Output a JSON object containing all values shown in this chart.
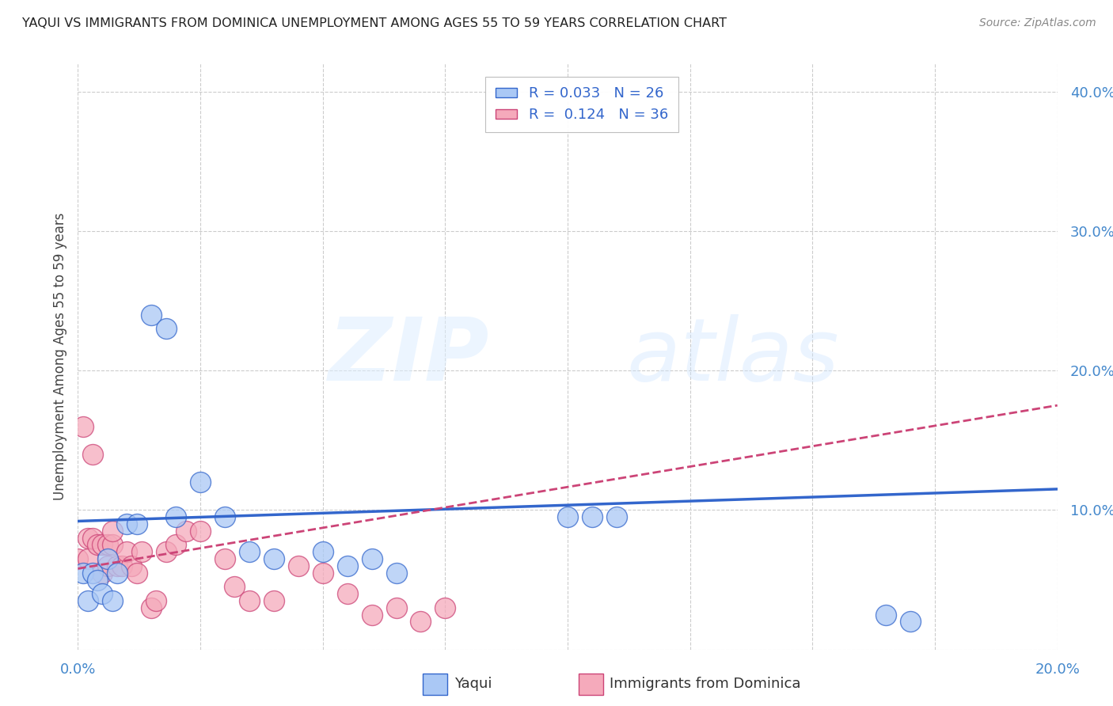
{
  "title": "YAQUI VS IMMIGRANTS FROM DOMINICA UNEMPLOYMENT AMONG AGES 55 TO 59 YEARS CORRELATION CHART",
  "source": "Source: ZipAtlas.com",
  "ylabel": "Unemployment Among Ages 55 to 59 years",
  "xlim": [
    0.0,
    0.2
  ],
  "ylim": [
    0.0,
    0.42
  ],
  "xticks": [
    0.0,
    0.025,
    0.05,
    0.075,
    0.1,
    0.125,
    0.15,
    0.175,
    0.2
  ],
  "yticks_right": [
    0.0,
    0.1,
    0.2,
    0.3,
    0.4
  ],
  "ytick_labels_right": [
    "",
    "10.0%",
    "20.0%",
    "30.0%",
    "40.0%"
  ],
  "yaqui_color": "#aac8f5",
  "dominica_color": "#f5aabb",
  "yaqui_line_color": "#3366cc",
  "dominica_line_color": "#cc4477",
  "yaqui_x": [
    0.001,
    0.002,
    0.003,
    0.004,
    0.005,
    0.006,
    0.007,
    0.008,
    0.01,
    0.012,
    0.015,
    0.018,
    0.02,
    0.025,
    0.03,
    0.035,
    0.04,
    0.05,
    0.055,
    0.06,
    0.065,
    0.1,
    0.105,
    0.11,
    0.165,
    0.17
  ],
  "yaqui_y": [
    0.055,
    0.035,
    0.055,
    0.05,
    0.04,
    0.065,
    0.035,
    0.055,
    0.09,
    0.09,
    0.24,
    0.23,
    0.095,
    0.12,
    0.095,
    0.07,
    0.065,
    0.07,
    0.06,
    0.065,
    0.055,
    0.095,
    0.095,
    0.095,
    0.025,
    0.02
  ],
  "dominica_x": [
    0.0,
    0.001,
    0.002,
    0.002,
    0.003,
    0.003,
    0.004,
    0.005,
    0.005,
    0.006,
    0.006,
    0.007,
    0.007,
    0.008,
    0.009,
    0.01,
    0.011,
    0.012,
    0.013,
    0.015,
    0.016,
    0.018,
    0.02,
    0.022,
    0.025,
    0.03,
    0.032,
    0.035,
    0.04,
    0.045,
    0.05,
    0.055,
    0.06,
    0.065,
    0.07,
    0.075
  ],
  "dominica_y": [
    0.065,
    0.16,
    0.065,
    0.08,
    0.08,
    0.14,
    0.075,
    0.075,
    0.055,
    0.075,
    0.06,
    0.075,
    0.085,
    0.06,
    0.06,
    0.07,
    0.06,
    0.055,
    0.07,
    0.03,
    0.035,
    0.07,
    0.075,
    0.085,
    0.085,
    0.065,
    0.045,
    0.035,
    0.035,
    0.06,
    0.055,
    0.04,
    0.025,
    0.03,
    0.02,
    0.03
  ],
  "yaqui_trend_x0": 0.0,
  "yaqui_trend_y0": 0.092,
  "yaqui_trend_x1": 0.2,
  "yaqui_trend_y1": 0.115,
  "dominica_trend_x0": 0.0,
  "dominica_trend_y0": 0.058,
  "dominica_trend_x1": 0.2,
  "dominica_trend_y1": 0.175
}
